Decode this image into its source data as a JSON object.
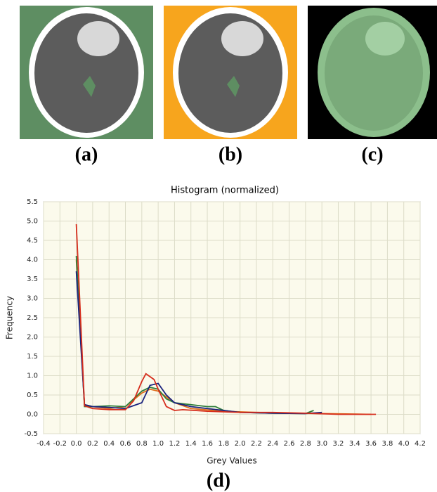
{
  "panel_labels": [
    "(a)",
    "(b)",
    "(c)",
    "(d)"
  ],
  "chart_data": {
    "type": "line",
    "title": "Histogram (normalized)",
    "x_label": "Grey Values",
    "y_label": "Frequency",
    "grid": true,
    "xlim": [
      -0.4,
      4.2
    ],
    "ylim": [
      -0.5,
      5.5
    ],
    "xticks": [
      -0.4,
      -0.2,
      {
        "value": 0,
        "label": "0.0"
      },
      0.2,
      0.4,
      0.6,
      0.8,
      {
        "value": 1,
        "label": "1.0"
      },
      1.2,
      1.4,
      1.6,
      1.8,
      {
        "value": 2,
        "label": "2.0"
      },
      2.2,
      2.4,
      2.6,
      2.8,
      {
        "value": 3,
        "label": "3.0"
      },
      3.2,
      3.4,
      3.6,
      3.8,
      {
        "value": 4,
        "label": "4.0"
      },
      4.2
    ],
    "yticks": [
      -0.5,
      {
        "value": 0,
        "label": "0.0"
      },
      0.5,
      {
        "value": 1,
        "label": "1.0"
      },
      1.5,
      {
        "value": 2,
        "label": "2.0"
      },
      2.5,
      {
        "value": 3,
        "label": "3.0"
      },
      3.5,
      {
        "value": 4,
        "label": "4.0"
      },
      4.5,
      {
        "value": 5,
        "label": "5.0"
      },
      5.5
    ],
    "series": [
      {
        "color": "#e0701e",
        "x": [
          0,
          0.1,
          0.2,
          0.4,
          0.6,
          0.8,
          0.9,
          1.0,
          1.2,
          1.4,
          1.8,
          2.2,
          2.6,
          3.0,
          3.6
        ],
        "values": [
          4.0,
          0.25,
          0.2,
          0.15,
          0.2,
          0.55,
          0.65,
          0.6,
          0.3,
          0.15,
          0.08,
          0.05,
          0.03,
          0.02,
          0
        ]
      },
      {
        "color": "#2e7d3a",
        "x": [
          0,
          0.1,
          0.2,
          0.4,
          0.6,
          0.8,
          0.9,
          1.0,
          1.1,
          1.2,
          1.4,
          1.6,
          1.7,
          1.8,
          2.0,
          2.4,
          2.8,
          2.9
        ],
        "values": [
          4.1,
          0.2,
          0.2,
          0.22,
          0.2,
          0.6,
          0.7,
          0.65,
          0.4,
          0.3,
          0.25,
          0.2,
          0.2,
          0.1,
          0.05,
          0.03,
          0.02,
          0.1
        ]
      },
      {
        "color": "#1a237e",
        "x": [
          0,
          0.1,
          0.2,
          0.4,
          0.6,
          0.8,
          0.9,
          1.0,
          1.1,
          1.2,
          1.4,
          1.6,
          1.8,
          2.0,
          2.4,
          2.8,
          3.0
        ],
        "values": [
          3.7,
          0.25,
          0.2,
          0.18,
          0.15,
          0.3,
          0.75,
          0.8,
          0.5,
          0.3,
          0.2,
          0.15,
          0.1,
          0.05,
          0.03,
          0.02,
          0.05
        ]
      },
      {
        "color": "#d62d1c",
        "x": [
          0,
          0.1,
          0.2,
          0.4,
          0.6,
          0.7,
          0.8,
          0.85,
          0.95,
          1.0,
          1.1,
          1.2,
          1.3,
          1.6,
          2.0,
          2.4,
          2.8,
          3.2,
          3.66
        ],
        "values": [
          4.92,
          0.22,
          0.15,
          0.12,
          0.12,
          0.35,
          0.85,
          1.05,
          0.9,
          0.65,
          0.2,
          0.1,
          0.12,
          0.08,
          0.05,
          0.05,
          0.03,
          0,
          0
        ]
      }
    ]
  }
}
